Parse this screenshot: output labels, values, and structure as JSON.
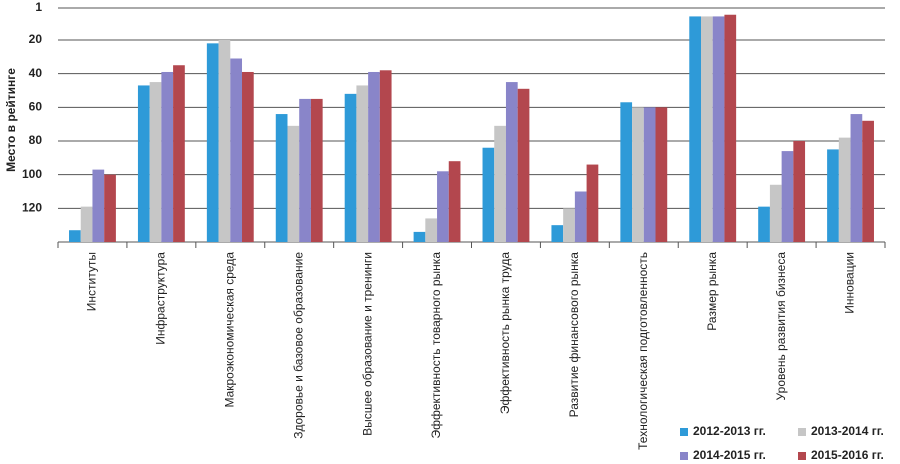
{
  "chart_data": {
    "type": "bar",
    "y_label": "Место в рейтинге",
    "categories": [
      "Институты",
      "Инфраструктура",
      "Макроэкономическая среда",
      "Здоровье и базовое образование",
      "Высшее образование и тренинги",
      "Эффективность товарного рынка",
      "Эффективность рынка труда",
      "Развитие финансового рынка",
      "Технологическая подготовленность",
      "Размер рынка",
      "Уровень развития бизнеса",
      "Инновации"
    ],
    "series": [
      {
        "name": "2012-2013 гг.",
        "color": "#2e9ad8",
        "values": [
          133,
          47,
          22,
          64,
          52,
          134,
          84,
          130,
          57,
          6,
          119,
          85
        ]
      },
      {
        "name": "2013-2014 гг.",
        "color": "#c6c6c6",
        "values": [
          119,
          45,
          20,
          71,
          47,
          126,
          71,
          120,
          60,
          6,
          106,
          78
        ]
      },
      {
        "name": "2014-2015 гг.",
        "color": "#8985c9",
        "values": [
          97,
          39,
          31,
          55,
          39,
          98,
          45,
          110,
          60,
          6,
          86,
          64
        ]
      },
      {
        "name": "2015-2016 гг.",
        "color": "#b3474e",
        "values": [
          100,
          35,
          39,
          55,
          38,
          92,
          49,
          94,
          60,
          5,
          80,
          68
        ]
      }
    ],
    "ylim": [
      140,
      1
    ],
    "yticks": [
      1,
      20,
      40,
      60,
      80,
      100,
      120
    ],
    "grid": true
  }
}
